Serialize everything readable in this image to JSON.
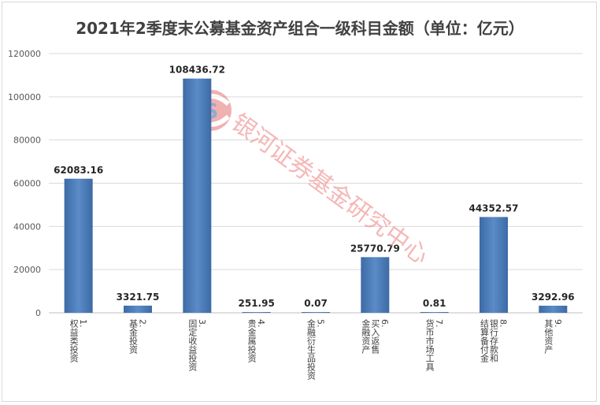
{
  "chart_data": {
    "type": "bar",
    "title": "2021年2季度末公募基金资产组合一级科目金额（单位：亿元）",
    "categories": [
      [
        "1.",
        "权益类投资"
      ],
      [
        "2.",
        "基金投资"
      ],
      [
        "3.",
        "固定收益投资"
      ],
      [
        "4.",
        "贵金属投资"
      ],
      [
        "5.",
        "金融衍生品投资"
      ],
      [
        "6.",
        "买入返售",
        "金融资产"
      ],
      [
        "7.",
        "货币市场工具"
      ],
      [
        "8.",
        "银行存款和",
        "结算备付金"
      ],
      [
        "9.",
        "其他资产"
      ]
    ],
    "values": [
      62083.16,
      3321.75,
      108436.72,
      251.95,
      0.07,
      25770.79,
      0.81,
      44352.57,
      3292.96
    ],
    "value_labels": [
      "62083.16",
      "3321.75",
      "108436.72",
      "251.95",
      "0.07",
      "25770.79",
      "0.81",
      "44352.57",
      "3292.96"
    ],
    "ylim": [
      0,
      120000
    ],
    "yticks": [
      0,
      20000,
      40000,
      60000,
      80000,
      100000,
      120000
    ],
    "grid": true,
    "bar_color": "#4f81bd",
    "bar_color_dark": "#3c6aa5",
    "xlabel": "",
    "ylabel": ""
  },
  "watermark": {
    "text": "银河证券基金研究中心",
    "color": "#f2a0a0"
  }
}
